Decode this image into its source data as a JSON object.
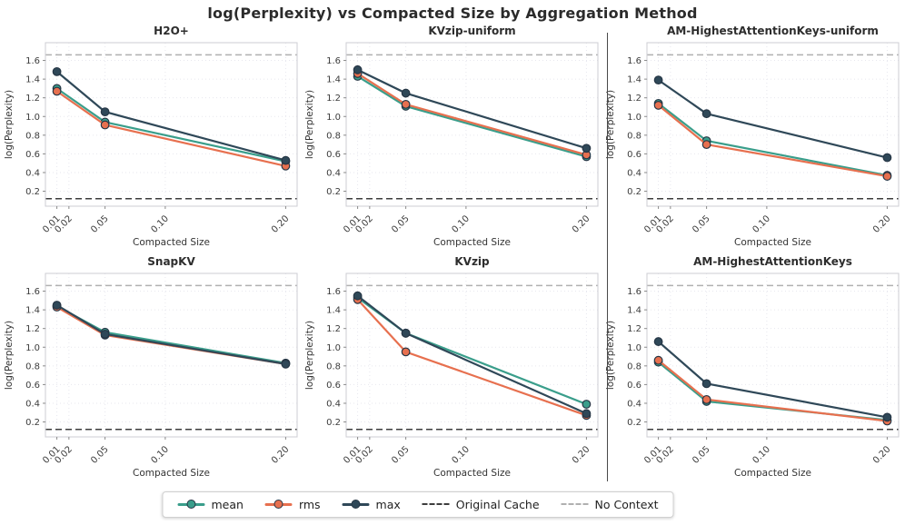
{
  "page": {
    "title": "log(Perplexity) vs Compacted Size by Aggregation Method"
  },
  "chart_data": {
    "type": "line",
    "suptitle": "log(Perplexity) vs Compacted Size by Aggregation Method",
    "xlabel": "Compacted Size",
    "ylabel": "log(Perplexity)",
    "x": [
      0.01,
      0.05,
      0.2
    ],
    "x_tick_values": [
      0.01,
      0.02,
      0.05,
      0.1,
      0.2
    ],
    "x_tick_labels": [
      "0.01",
      "0.02",
      "0.05",
      "0.10",
      "0.20"
    ],
    "y_ticks": [
      0.2,
      0.4,
      0.6,
      0.8,
      1.0,
      1.2,
      1.4,
      1.6
    ],
    "x_range": [
      0.0005,
      0.2095
    ],
    "y_range": [
      0.04,
      1.79
    ],
    "grid": true,
    "legend_position": "lower center",
    "marker_edge_color": "#263645",
    "reference_lines": [
      {
        "label": "Original Cache",
        "y": 0.12,
        "color": "#3d3d3d"
      },
      {
        "label": "No Context",
        "y": 1.66,
        "color": "#b0b0b0"
      }
    ],
    "series_colors": {
      "mean": "#3A9E8B",
      "rms": "#E7704F",
      "max": "#2F4858"
    },
    "charts": [
      {
        "title": "H2O+",
        "series": [
          {
            "name": "mean",
            "values": [
              1.3,
              0.94,
              0.52
            ]
          },
          {
            "name": "rms",
            "values": [
              1.27,
              0.91,
              0.47
            ]
          },
          {
            "name": "max",
            "values": [
              1.48,
              1.05,
              0.53
            ]
          }
        ]
      },
      {
        "title": "KVzip-uniform",
        "series": [
          {
            "name": "mean",
            "values": [
              1.43,
              1.11,
              0.57
            ]
          },
          {
            "name": "rms",
            "values": [
              1.46,
              1.13,
              0.59
            ]
          },
          {
            "name": "max",
            "values": [
              1.5,
              1.25,
              0.66
            ]
          }
        ]
      },
      {
        "title": "AM-HighestAttentionKeys-uniform",
        "series": [
          {
            "name": "mean",
            "values": [
              1.14,
              0.74,
              0.37
            ]
          },
          {
            "name": "rms",
            "values": [
              1.12,
              0.7,
              0.36
            ]
          },
          {
            "name": "max",
            "values": [
              1.39,
              1.03,
              0.56
            ]
          }
        ]
      },
      {
        "title": "SnapKV",
        "series": [
          {
            "name": "mean",
            "values": [
              1.44,
              1.16,
              0.83
            ]
          },
          {
            "name": "rms",
            "values": [
              1.43,
              1.13,
              0.82
            ]
          },
          {
            "name": "max",
            "values": [
              1.45,
              1.14,
              0.82
            ]
          }
        ]
      },
      {
        "title": "KVzip",
        "series": [
          {
            "name": "mean",
            "values": [
              1.53,
              1.15,
              0.39
            ]
          },
          {
            "name": "rms",
            "values": [
              1.51,
              0.95,
              0.27
            ]
          },
          {
            "name": "max",
            "values": [
              1.55,
              1.15,
              0.29
            ]
          }
        ]
      },
      {
        "title": "AM-HighestAttentionKeys",
        "series": [
          {
            "name": "mean",
            "values": [
              0.84,
              0.42,
              0.22
            ]
          },
          {
            "name": "rms",
            "values": [
              0.86,
              0.44,
              0.21
            ]
          },
          {
            "name": "max",
            "values": [
              1.06,
              0.61,
              0.25
            ]
          }
        ]
      }
    ],
    "legend": {
      "items": [
        {
          "label": "mean",
          "type": "line-marker",
          "color": "#3A9E8B"
        },
        {
          "label": "rms",
          "type": "line-marker",
          "color": "#E7704F"
        },
        {
          "label": "max",
          "type": "line-marker",
          "color": "#2F4858"
        },
        {
          "label": "Original Cache",
          "type": "dashed",
          "color": "#3d3d3d"
        },
        {
          "label": "No Context",
          "type": "dashed",
          "color": "#b0b0b0"
        }
      ]
    }
  }
}
